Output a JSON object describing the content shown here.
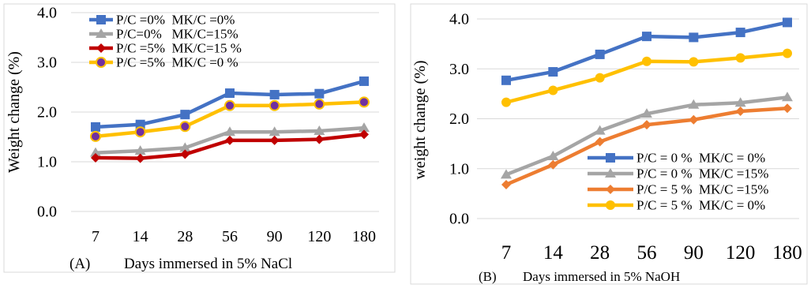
{
  "chart_data": [
    {
      "type": "line",
      "panel_label": "(A)",
      "title": "",
      "xlabel": "Days immersed in 5% NaCl",
      "ylabel": "Weight change (%)",
      "categories": [
        "7",
        "14",
        "28",
        "56",
        "90",
        "120",
        "180"
      ],
      "ylim": [
        0,
        4
      ],
      "yticks": [
        "0.0",
        "1.0",
        "2.0",
        "3.0",
        "4.0"
      ],
      "grid": true,
      "legend_position": "top-left",
      "series": [
        {
          "name": "P/C =0%  MK/C =0%",
          "color": "#4472C4",
          "marker": "square",
          "values": [
            1.7,
            1.75,
            1.95,
            2.38,
            2.35,
            2.37,
            2.62
          ]
        },
        {
          "name": "P/C=0%   MK/C=15%",
          "color": "#A5A5A5",
          "marker": "triangle",
          "values": [
            1.18,
            1.22,
            1.28,
            1.6,
            1.6,
            1.62,
            1.68
          ]
        },
        {
          "name": "P/C =5%  MK/C=15 %",
          "color": "#C00000",
          "marker": "diamond",
          "values": [
            1.08,
            1.07,
            1.15,
            1.43,
            1.43,
            1.45,
            1.55
          ]
        },
        {
          "name": "P/C =5%  MK/C =0 %",
          "color": "#FFC000",
          "marker": "circle-purple",
          "values": [
            1.51,
            1.6,
            1.71,
            2.13,
            2.13,
            2.16,
            2.2
          ]
        }
      ]
    },
    {
      "type": "line",
      "panel_label": "(B)",
      "title": "",
      "xlabel": "Days immersed in 5% NaOH",
      "ylabel": "weight change (%)",
      "categories": [
        "7",
        "14",
        "28",
        "56",
        "90",
        "120",
        "180"
      ],
      "ylim": [
        0,
        4
      ],
      "yticks": [
        "0.0",
        "1.0",
        "2.0",
        "3.0",
        "4.0"
      ],
      "grid": true,
      "legend_position": "bottom-right",
      "series": [
        {
          "name": "P/C = 0 %  MK/C = 0%",
          "color": "#4472C4",
          "marker": "square",
          "values": [
            2.77,
            2.94,
            3.29,
            3.65,
            3.63,
            3.73,
            3.93
          ]
        },
        {
          "name": "P/C = 0 %  MK/C =15%",
          "color": "#A5A5A5",
          "marker": "triangle",
          "values": [
            0.88,
            1.25,
            1.76,
            2.1,
            2.28,
            2.32,
            2.43
          ]
        },
        {
          "name": "P/C = 5 %  MK/C =15%",
          "color": "#ED7D31",
          "marker": "diamond",
          "values": [
            0.68,
            1.08,
            1.54,
            1.88,
            1.98,
            2.15,
            2.21
          ]
        },
        {
          "name": "P/C = 5 %  MK/C = 0%",
          "color": "#FFC000",
          "marker": "circle",
          "values": [
            2.33,
            2.57,
            2.82,
            3.15,
            3.14,
            3.22,
            3.31
          ]
        }
      ]
    }
  ]
}
